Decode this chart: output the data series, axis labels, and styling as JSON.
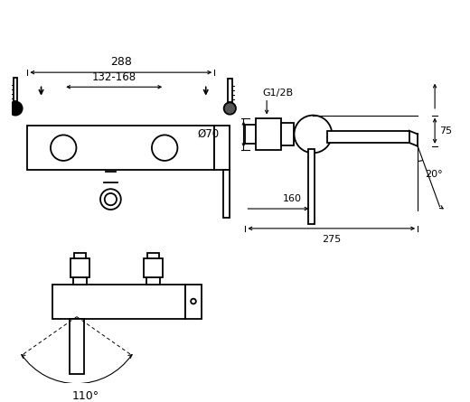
{
  "bg_color": "#ffffff",
  "line_color": "#000000",
  "annotations": {
    "dim_288": "288",
    "dim_132_168": "132-168",
    "dim_g12b": "G1/2B",
    "dim_o70": "Ø70",
    "dim_75": "75",
    "dim_160": "160",
    "dim_275": "275",
    "dim_20deg": "20°",
    "dim_110deg": "110°"
  },
  "figsize": [
    5.2,
    4.45
  ],
  "dpi": 100
}
